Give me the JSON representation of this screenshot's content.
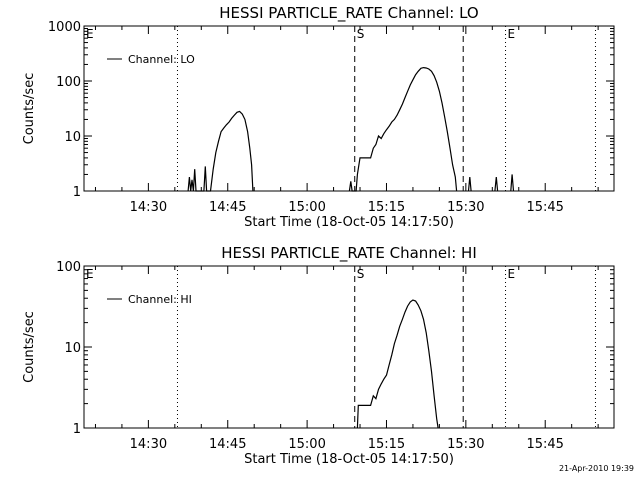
{
  "footer": {
    "timestamp": "21-Apr-2010 19:39"
  },
  "chart_data": [
    {
      "type": "line",
      "title": "HESSI PARTICLE_RATE Channel: LO",
      "xlabel": "Start Time (18-Oct-05 14:17:50)",
      "ylabel": "Counts/sec",
      "y_scale": "log",
      "ylim": [
        1,
        1000
      ],
      "y_ticks": [
        1,
        10,
        100,
        1000
      ],
      "y_tick_labels": [
        "1",
        "10",
        "100",
        "1000"
      ],
      "x_unit": "time",
      "xlim": [
        "14:17:50",
        "15:58:00"
      ],
      "x_ticks": [
        "14:30",
        "14:45",
        "15:00",
        "15:15",
        "15:30",
        "15:45"
      ],
      "legend": {
        "label": "Channel: LO",
        "position": "top-left"
      },
      "markers": [
        {
          "time": "14:17:50",
          "style": "dotted",
          "label": "E"
        },
        {
          "time": "14:35:30",
          "style": "dotted",
          "label": ""
        },
        {
          "time": "15:09:00",
          "style": "dashed",
          "label": "S"
        },
        {
          "time": "15:29:30",
          "style": "dashed",
          "label": ""
        },
        {
          "time": "15:37:30",
          "style": "dotted",
          "label": "E"
        },
        {
          "time": "15:54:30",
          "style": "dotted",
          "label": ""
        }
      ],
      "series": [
        {
          "label": "",
          "points": [
            [
              "14:37:30",
              1
            ],
            [
              "14:37:45",
              1.8
            ],
            [
              "14:38:00",
              1
            ],
            [
              "14:38:15",
              1.6
            ],
            [
              "14:38:30",
              1
            ],
            [
              "14:38:45",
              2.5
            ],
            [
              "14:39:00",
              1
            ],
            [
              "14:40:30",
              1
            ],
            [
              "14:40:45",
              2.8
            ],
            [
              "14:41:00",
              1
            ],
            [
              "14:41:45",
              1
            ],
            [
              "14:42:15",
              2.5
            ],
            [
              "14:42:45",
              5
            ],
            [
              "14:43:15",
              8
            ],
            [
              "14:43:45",
              12
            ],
            [
              "14:44:15",
              14
            ],
            [
              "14:44:45",
              16
            ],
            [
              "14:45:15",
              18
            ],
            [
              "14:45:45",
              21
            ],
            [
              "14:46:15",
              24
            ],
            [
              "14:46:45",
              27
            ],
            [
              "14:47:15",
              28
            ],
            [
              "14:47:45",
              25
            ],
            [
              "14:48:15",
              20
            ],
            [
              "14:48:45",
              12
            ],
            [
              "14:49:10",
              6
            ],
            [
              "14:49:30",
              3
            ],
            [
              "14:49:45",
              1
            ],
            [
              "15:08:00",
              1
            ],
            [
              "15:08:15",
              1.5
            ],
            [
              "15:08:30",
              1
            ],
            [
              "15:09:15",
              1
            ],
            [
              "15:09:30",
              2
            ],
            [
              "15:10:00",
              4
            ],
            [
              "15:11:00",
              4
            ],
            [
              "15:12:00",
              4
            ],
            [
              "15:12:30",
              6
            ],
            [
              "15:13:00",
              7
            ],
            [
              "15:13:30",
              10
            ],
            [
              "15:14:00",
              9
            ],
            [
              "15:14:30",
              11
            ],
            [
              "15:15:00",
              13
            ],
            [
              "15:15:30",
              15
            ],
            [
              "15:16:00",
              18
            ],
            [
              "15:16:30",
              20
            ],
            [
              "15:17:00",
              24
            ],
            [
              "15:17:30",
              30
            ],
            [
              "15:18:00",
              38
            ],
            [
              "15:18:30",
              50
            ],
            [
              "15:19:00",
              65
            ],
            [
              "15:19:30",
              85
            ],
            [
              "15:20:00",
              105
            ],
            [
              "15:20:30",
              130
            ],
            [
              "15:21:00",
              150
            ],
            [
              "15:21:30",
              170
            ],
            [
              "15:22:00",
              175
            ],
            [
              "15:22:30",
              172
            ],
            [
              "15:23:00",
              165
            ],
            [
              "15:23:30",
              150
            ],
            [
              "15:24:00",
              125
            ],
            [
              "15:24:30",
              95
            ],
            [
              "15:25:00",
              65
            ],
            [
              "15:25:30",
              40
            ],
            [
              "15:26:00",
              22
            ],
            [
              "15:26:30",
              12
            ],
            [
              "15:27:00",
              6
            ],
            [
              "15:27:30",
              3
            ],
            [
              "15:28:00",
              1.8
            ],
            [
              "15:28:15",
              1
            ],
            [
              "15:30:30",
              1
            ],
            [
              "15:30:45",
              1.8
            ],
            [
              "15:31:00",
              1
            ],
            [
              "15:35:30",
              1
            ],
            [
              "15:35:45",
              1.8
            ],
            [
              "15:36:00",
              1
            ],
            [
              "15:38:30",
              1
            ],
            [
              "15:38:45",
              2
            ],
            [
              "15:39:00",
              1
            ]
          ]
        }
      ]
    },
    {
      "type": "line",
      "title": "HESSI PARTICLE_RATE Channel: HI",
      "xlabel": "Start Time (18-Oct-05 14:17:50)",
      "ylabel": "Counts/sec",
      "y_scale": "log",
      "ylim": [
        1,
        100
      ],
      "y_ticks": [
        1,
        10,
        100
      ],
      "y_tick_labels": [
        "1",
        "10",
        "100"
      ],
      "x_unit": "time",
      "xlim": [
        "14:17:50",
        "15:58:00"
      ],
      "x_ticks": [
        "14:30",
        "14:45",
        "15:00",
        "15:15",
        "15:30",
        "15:45"
      ],
      "legend": {
        "label": "Channel: HI",
        "position": "top-left"
      },
      "markers": [
        {
          "time": "14:17:50",
          "style": "dotted",
          "label": "E"
        },
        {
          "time": "14:35:30",
          "style": "dotted",
          "label": ""
        },
        {
          "time": "15:09:00",
          "style": "dashed",
          "label": "S"
        },
        {
          "time": "15:29:30",
          "style": "dashed",
          "label": ""
        },
        {
          "time": "15:37:30",
          "style": "dotted",
          "label": "E"
        },
        {
          "time": "15:54:30",
          "style": "dotted",
          "label": ""
        }
      ],
      "series": [
        {
          "label": "",
          "points": [
            [
              "15:09:30",
              1
            ],
            [
              "15:09:40",
              1.9
            ],
            [
              "15:10:00",
              1.9
            ],
            [
              "15:11:00",
              1.9
            ],
            [
              "15:12:00",
              1.9
            ],
            [
              "15:12:30",
              2.5
            ],
            [
              "15:13:00",
              2.3
            ],
            [
              "15:13:30",
              3
            ],
            [
              "15:14:00",
              3.5
            ],
            [
              "15:14:30",
              4
            ],
            [
              "15:15:00",
              4.5
            ],
            [
              "15:15:30",
              6
            ],
            [
              "15:16:00",
              8
            ],
            [
              "15:16:30",
              11
            ],
            [
              "15:17:00",
              14
            ],
            [
              "15:17:30",
              18
            ],
            [
              "15:18:00",
              22
            ],
            [
              "15:18:30",
              27
            ],
            [
              "15:19:00",
              32
            ],
            [
              "15:19:30",
              36
            ],
            [
              "15:20:00",
              38
            ],
            [
              "15:20:30",
              37
            ],
            [
              "15:21:00",
              33
            ],
            [
              "15:21:30",
              28
            ],
            [
              "15:22:00",
              22
            ],
            [
              "15:22:30",
              15
            ],
            [
              "15:23:00",
              9
            ],
            [
              "15:23:30",
              5
            ],
            [
              "15:24:00",
              2.5
            ],
            [
              "15:24:30",
              1.3
            ],
            [
              "15:24:45",
              1
            ]
          ]
        }
      ]
    }
  ]
}
